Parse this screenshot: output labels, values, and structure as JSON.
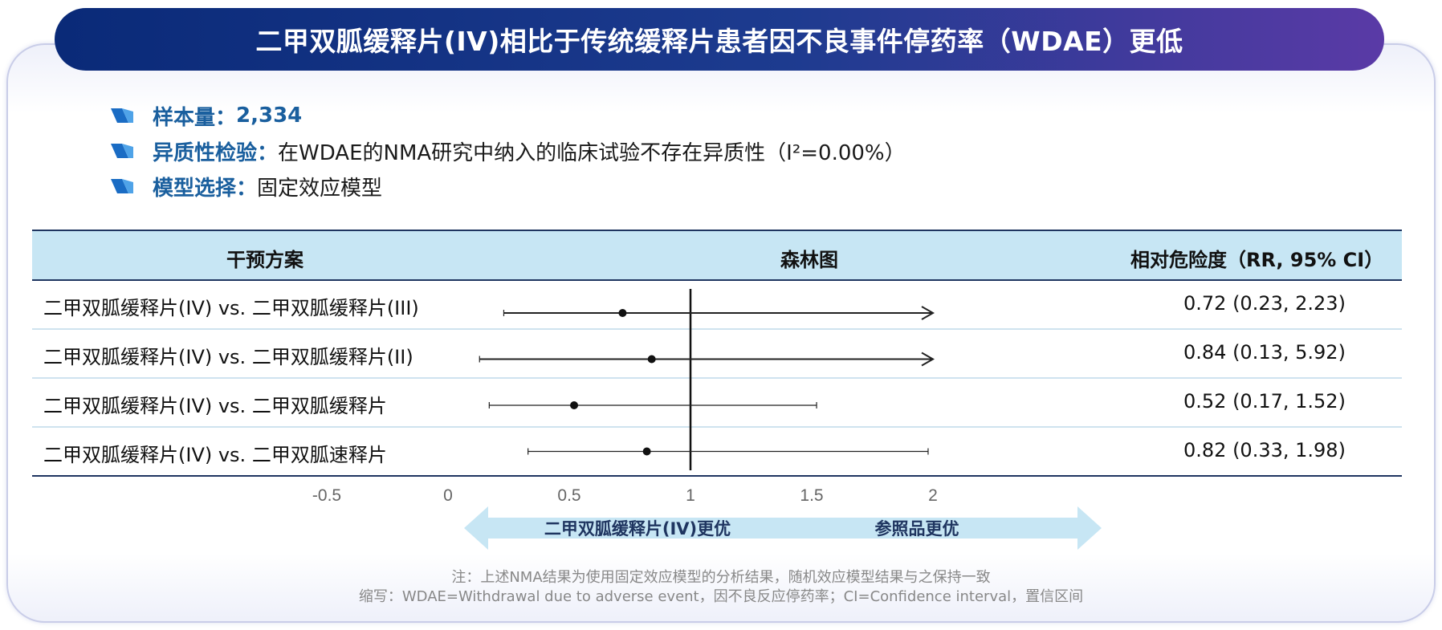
{
  "title": "二甲双胍缓释片(IV)相比于传统缓释片患者因不良事件停药率（WDAE）更低",
  "bullets": [
    {
      "key": "样本量：",
      "value": "2,334",
      "value_bold": true
    },
    {
      "key": "异质性检验：",
      "value": "在WDAE的NMA研究中纳入的临床试验不存在异质性（I²=0.00%）",
      "value_bold": false
    },
    {
      "key": "模型选择：",
      "value": "固定效应模型",
      "value_bold": false
    }
  ],
  "table": {
    "headers": {
      "intervention": "干预方案",
      "forest": "森林图",
      "rr": "相对危险度（RR, 95% CI）"
    }
  },
  "chart_data": {
    "type": "forest",
    "reference_line": 1,
    "xlim": [
      -0.5,
      2
    ],
    "x_ticks": [
      "-0.5",
      "0",
      "0.5",
      "1",
      "1.5",
      "2"
    ],
    "rows": [
      {
        "label": "二甲双胍缓释片(IV) vs. 二甲双胍缓释片(III)",
        "point": 0.72,
        "lower": 0.23,
        "upper": 2.23,
        "rr_text": "0.72 (0.23, 2.23)"
      },
      {
        "label": "二甲双胍缓释片(IV) vs. 二甲双胍缓释片(II)",
        "point": 0.84,
        "lower": 0.13,
        "upper": 5.92,
        "rr_text": "0.84 (0.13, 5.92)"
      },
      {
        "label": "二甲双胍缓释片(IV) vs. 二甲双胍缓释片",
        "point": 0.52,
        "lower": 0.17,
        "upper": 1.52,
        "rr_text": "0.52 (0.17, 1.52)"
      },
      {
        "label": "二甲双胍缓释片(IV) vs. 二甲双胍速释片",
        "point": 0.82,
        "lower": 0.33,
        "upper": 1.98,
        "rr_text": "0.82 (0.33, 1.98)"
      }
    ],
    "favors_left": "二甲双胍缓释片(IV)更优",
    "favors_right": "参照品更优"
  },
  "notes": {
    "note": "注：上述NMA结果为使用固定效应模型的分析结果，随机效应模型结果与之保持一致",
    "abbr": "缩写：WDAE=Withdrawal due to adverse event，因不良反应停药率；CI=Confidence interval，置信区间"
  },
  "colors": {
    "accent": "#1a5f9e",
    "header_bg": "#c7e6f4",
    "arrow": "#c7e6f4"
  }
}
